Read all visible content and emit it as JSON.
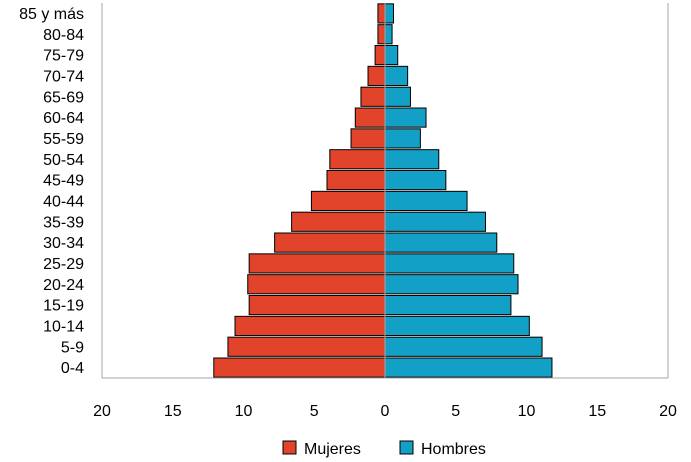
{
  "chart_data": {
    "type": "bar",
    "orientation": "horizontal",
    "layout": "population-pyramid",
    "categories": [
      "85 y más",
      "80-84",
      "75-79",
      "70-74",
      "65-69",
      "60-64",
      "55-59",
      "50-54",
      "45-49",
      "40-44",
      "35-39",
      "30-34",
      "25-29",
      "20-24",
      "15-19",
      "10-14",
      "5-9",
      "0-4"
    ],
    "series": [
      {
        "name": "Mujeres",
        "color": "#e2432b",
        "side": "left",
        "values": [
          0.5,
          0.5,
          0.7,
          1.2,
          1.7,
          2.1,
          2.4,
          3.9,
          4.1,
          5.2,
          6.6,
          7.8,
          9.6,
          9.7,
          9.6,
          10.6,
          11.1,
          12.1
        ]
      },
      {
        "name": "Hombres",
        "color": "#13a0c6",
        "side": "right",
        "values": [
          0.6,
          0.5,
          0.9,
          1.6,
          1.8,
          2.9,
          2.5,
          3.8,
          4.3,
          5.8,
          7.1,
          7.9,
          9.1,
          9.4,
          8.9,
          10.2,
          11.1,
          11.8
        ]
      }
    ],
    "x_ticks": [
      "20",
      "15",
      "10",
      "5",
      "0",
      "5",
      "10",
      "15",
      "20"
    ],
    "xlim": [
      -20,
      20
    ],
    "grid": false,
    "legend_position": "bottom"
  }
}
